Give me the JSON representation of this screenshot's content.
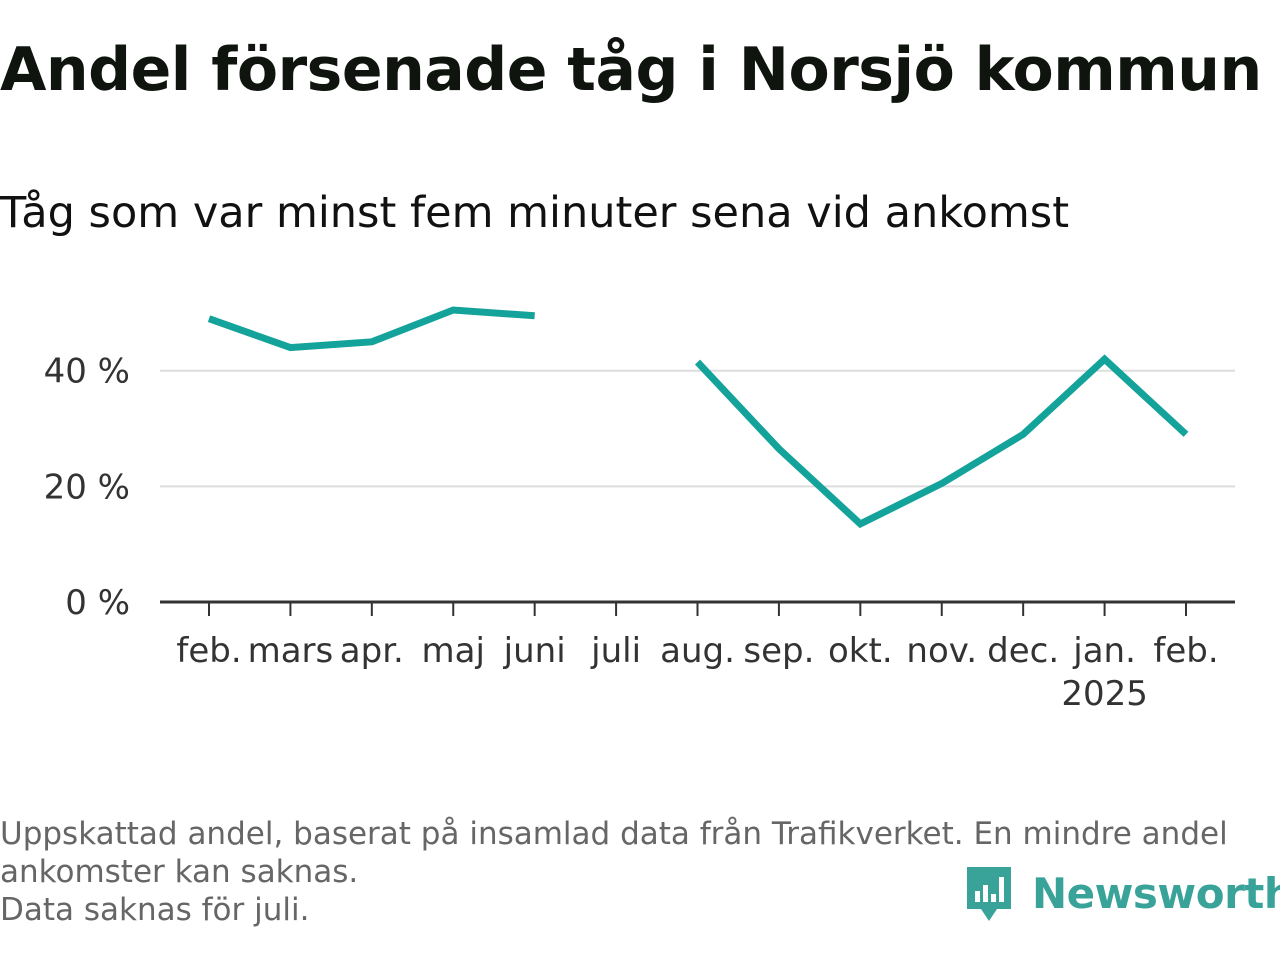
{
  "title": "Andel försenade tåg i Norsjö kommun",
  "subtitle": "Tåg som var minst fem minuter sena vid ankomst",
  "footnote": {
    "line1": "Uppskattad andel, baserat på insamlad data från Trafikverket. En mindre andel",
    "line2": "ankomster kan saknas.",
    "line3": "Data saknas för juli."
  },
  "brand": {
    "name": "Newsworthy",
    "icon": "newsworthy-logo-icon"
  },
  "colors": {
    "line": "#14a39a",
    "grid": "#dddddd",
    "axis": "#333333",
    "brand": "#3aa399"
  },
  "chart_data": {
    "type": "line",
    "title": "Andel försenade tåg i Norsjö kommun",
    "subtitle": "Tåg som var minst fem minuter sena vid ankomst",
    "categories": [
      "feb.",
      "mars",
      "apr.",
      "maj",
      "juni",
      "juli",
      "aug.",
      "sep.",
      "okt.",
      "nov.",
      "dec.",
      "jan.",
      "feb."
    ],
    "year_label": {
      "category_index": 11,
      "text": "2025"
    },
    "series": [
      {
        "name": "Andel försenade tåg",
        "values": [
          49,
          44,
          45,
          50.5,
          49.5,
          null,
          41.5,
          26.5,
          13.5,
          20.5,
          29,
          42,
          29
        ]
      }
    ],
    "yticks": [
      0,
      20,
      40
    ],
    "ytick_labels": [
      "0 %",
      "20 %",
      "40 %"
    ],
    "ylim": [
      0,
      55
    ],
    "xlabel": "",
    "ylabel": "",
    "grid": true,
    "legend": "none"
  }
}
